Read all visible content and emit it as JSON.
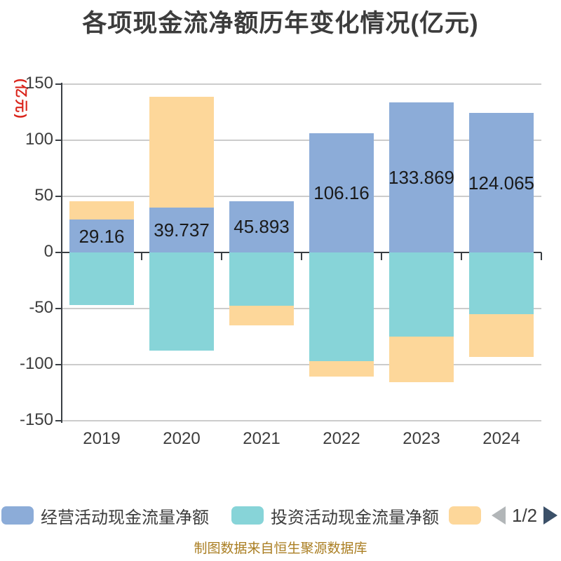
{
  "title": "各项现金流净额历年变化情况(亿元)",
  "y_axis": {
    "name": "(亿元)",
    "ticks": [
      150,
      100,
      50,
      0,
      -50,
      -100,
      -150
    ]
  },
  "chart_data": {
    "type": "bar",
    "stacked": true,
    "categories": [
      "2019",
      "2020",
      "2021",
      "2022",
      "2023",
      "2024"
    ],
    "ylim": [
      -150,
      150
    ],
    "y_tick_step": 50,
    "grid": true,
    "legend_position": "bottom",
    "series": [
      {
        "name": "经营活动现金流量净额",
        "color": "#8cacd8",
        "values": [
          29.16,
          39.737,
          45.893,
          106.16,
          133.869,
          124.065
        ]
      },
      {
        "name": "投资活动现金流量净额",
        "color": "#87d4d8",
        "values": [
          -47,
          -87.5,
          -47.5,
          -97,
          -75,
          -55
        ]
      },
      {
        "name": "",
        "color": "#fdd79a",
        "values": [
          16.4,
          99.1,
          -17.5,
          -13.5,
          -40.6,
          -38
        ]
      }
    ],
    "data_labels": [
      "29.16",
      "39.737",
      "45.893",
      "106.16",
      "133.869",
      "124.065"
    ]
  },
  "legend": {
    "items": [
      {
        "label": "经营活动现金流量净额",
        "color": "#8cacd8"
      },
      {
        "label": "投资活动现金流量净额",
        "color": "#87d4d8"
      },
      {
        "label": "",
        "color": "#fdd79a"
      }
    ],
    "pagination": {
      "current": "1/2",
      "prev_arrow_color": "#b2b6b8",
      "next_arrow_color": "#3b5068"
    }
  },
  "footer": "制图数据来自恒生聚源数据库",
  "colors": {
    "title": "#3c3c3c",
    "axis_line": "#3a3f44",
    "grid_line": "#cccccc",
    "tick_label": "#3d3d3d",
    "value_label": "#1a1a1a",
    "y_axis_name": "#da251c",
    "footer": "#aa7e22",
    "background": "#ffffff"
  }
}
